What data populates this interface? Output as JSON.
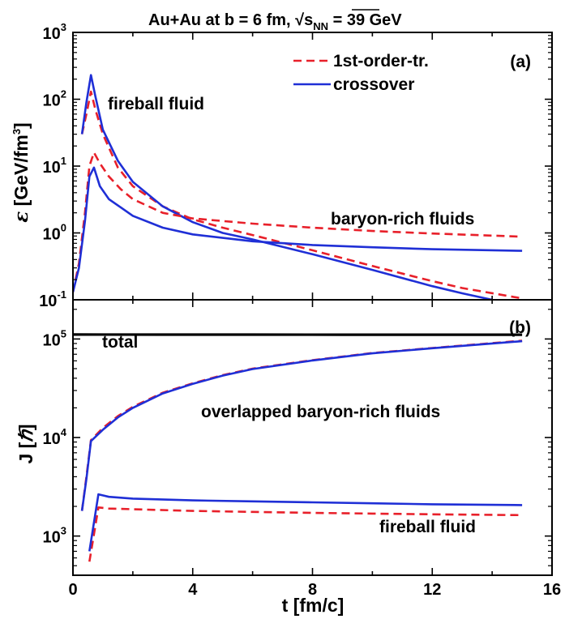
{
  "figure": {
    "title": "Au+Au at b = 6 fm, √s",
    "title_sub": "NN",
    "title_tail": " = 39 GeV",
    "xlabel": "t [fm/c]"
  },
  "colors": {
    "first_order": "#e8202a",
    "crossover": "#1f2fd6",
    "total": "#000000"
  },
  "chart_data": [
    {
      "panel": "(a)",
      "type": "line",
      "yscale": "log",
      "xlim": [
        0,
        16
      ],
      "ylim": [
        0.1,
        1000
      ],
      "ylabel_sym": "ε",
      "ylabel_text": " [GeV/fm",
      "ylabel_sup": "3",
      "ylabel_tail": "]",
      "xticks": [
        "0",
        "4",
        "8",
        "12",
        "16"
      ],
      "yticks": [
        {
          "base": "10",
          "exp": "-1",
          "value": 0.1
        },
        {
          "base": "10",
          "exp": "0",
          "value": 1
        },
        {
          "base": "10",
          "exp": "1",
          "value": 10
        },
        {
          "base": "10",
          "exp": "2",
          "value": 100
        },
        {
          "base": "10",
          "exp": "3",
          "value": 1000
        }
      ],
      "legend": [
        {
          "label": "1st-order-tr.",
          "style": "dashed"
        },
        {
          "label": "crossover",
          "style": "solid"
        }
      ],
      "annotations": [
        "fireball fluid",
        "baryon-rich fluids"
      ],
      "series": [
        {
          "name": "1st-order-tr.",
          "style": "dashed",
          "group": "fireball fluid",
          "x": [
            0.3,
            0.45,
            0.6,
            0.75,
            1.0,
            1.5,
            2,
            3,
            4,
            5,
            6,
            8,
            10,
            12,
            13,
            15
          ],
          "y": [
            30,
            60,
            130,
            70,
            30,
            9.5,
            5,
            2.5,
            1.6,
            1.2,
            0.93,
            0.55,
            0.32,
            0.19,
            0.15,
            0.105
          ]
        },
        {
          "name": "crossover",
          "style": "solid",
          "group": "fireball fluid",
          "x": [
            0.3,
            0.45,
            0.6,
            0.75,
            1.0,
            1.5,
            2,
            3,
            4,
            5,
            6,
            8,
            10,
            12,
            13,
            14
          ],
          "y": [
            30,
            90,
            230,
            110,
            35,
            12,
            5.8,
            2.5,
            1.45,
            1.0,
            0.8,
            0.48,
            0.28,
            0.16,
            0.125,
            0.1
          ]
        },
        {
          "name": "1st-order-tr.",
          "style": "dashed",
          "group": "baryon-rich fluids",
          "x": [
            0,
            0.2,
            0.4,
            0.55,
            0.7,
            0.9,
            1.2,
            1.6,
            2,
            3,
            4,
            6,
            8,
            10,
            12,
            15
          ],
          "y": [
            0.13,
            0.35,
            2,
            10,
            16,
            11,
            7,
            4.5,
            3.2,
            2.0,
            1.65,
            1.38,
            1.2,
            1.07,
            0.98,
            0.88
          ]
        },
        {
          "name": "crossover",
          "style": "solid",
          "group": "baryon-rich fluids",
          "x": [
            0,
            0.2,
            0.4,
            0.55,
            0.7,
            0.9,
            1.2,
            1.6,
            2,
            3,
            4,
            6,
            8,
            10,
            12,
            15
          ],
          "y": [
            0.13,
            0.3,
            1.5,
            7,
            9.5,
            5,
            3.2,
            2.4,
            1.8,
            1.2,
            0.95,
            0.75,
            0.66,
            0.61,
            0.57,
            0.54
          ]
        }
      ]
    },
    {
      "panel": "(b)",
      "type": "line",
      "yscale": "log",
      "xlim": [
        0,
        16
      ],
      "ylim": [
        400,
        250000
      ],
      "ylabel_sym": "J [",
      "ylabel_text": "ℏ",
      "ylabel_sup": "",
      "ylabel_tail": "]",
      "xticks": [
        "0",
        "4",
        "8",
        "12",
        "16"
      ],
      "yticks": [
        {
          "base": "10",
          "exp": "3",
          "value": 1000
        },
        {
          "base": "10",
          "exp": "4",
          "value": 10000
        },
        {
          "base": "10",
          "exp": "5",
          "value": 100000
        }
      ],
      "annotations": [
        "total",
        "overlapped baryon-rich fluids",
        "fireball fluid"
      ],
      "series": [
        {
          "name": "total",
          "style": "solid",
          "x": [
            0,
            3,
            6,
            9,
            12,
            15
          ],
          "y": [
            111000,
            110800,
            110700,
            110600,
            110600,
            110500
          ]
        },
        {
          "name": "1st-order-tr.",
          "style": "dashed",
          "group": "overlapped baryon-rich fluids",
          "x": [
            0.3,
            0.45,
            0.6,
            1.0,
            1.5,
            2,
            3,
            4,
            5,
            6,
            8,
            10,
            12,
            15
          ],
          "y": [
            1800,
            4000,
            9400,
            12500,
            16500,
            20500,
            28500,
            35500,
            43000,
            50000,
            61000,
            72000,
            81000,
            96000
          ]
        },
        {
          "name": "crossover",
          "style": "solid",
          "group": "overlapped baryon-rich fluids",
          "x": [
            0.3,
            0.45,
            0.6,
            1.0,
            1.5,
            2,
            3,
            4,
            5,
            6,
            8,
            10,
            12,
            15
          ],
          "y": [
            1800,
            3800,
            9200,
            12000,
            16000,
            20000,
            28000,
            35000,
            42500,
            49500,
            60500,
            71500,
            80500,
            95000
          ]
        },
        {
          "name": "1st-order-tr.",
          "style": "dashed",
          "group": "fireball fluid",
          "x": [
            0.55,
            0.85,
            1.2,
            2,
            4,
            6,
            8,
            10,
            12,
            15
          ],
          "y": [
            550,
            1950,
            1900,
            1870,
            1800,
            1760,
            1720,
            1690,
            1660,
            1630
          ]
        },
        {
          "name": "crossover",
          "style": "solid",
          "group": "fireball fluid",
          "x": [
            0.55,
            0.85,
            1.2,
            2,
            4,
            6,
            8,
            10,
            12,
            15
          ],
          "y": [
            700,
            2650,
            2500,
            2400,
            2300,
            2250,
            2200,
            2150,
            2100,
            2060
          ]
        }
      ]
    }
  ]
}
